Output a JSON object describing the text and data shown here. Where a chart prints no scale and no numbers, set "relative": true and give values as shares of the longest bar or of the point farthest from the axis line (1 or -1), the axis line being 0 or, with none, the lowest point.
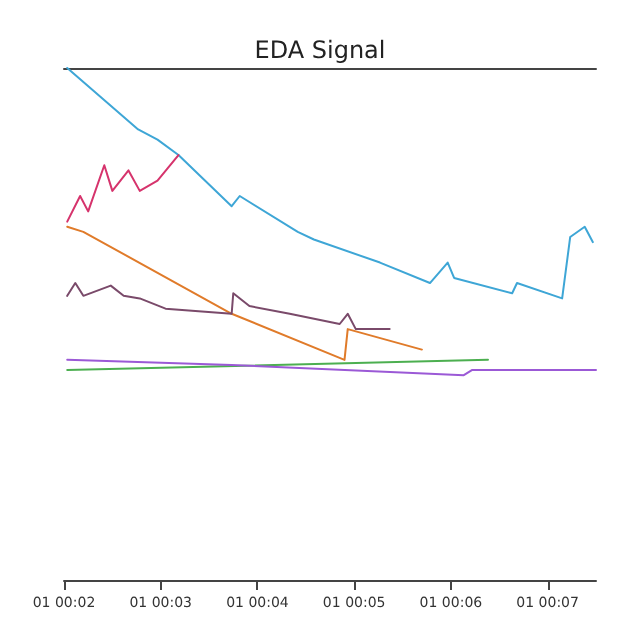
{
  "chart_data": {
    "type": "line",
    "title": "EDA Signal",
    "relative": true,
    "xlim": [
      "--01-01T00:02:00",
      "--01-01T00:07:30"
    ],
    "xticks": [
      {
        "value": "--01-01T00:02",
        "label": "01 00:02"
      },
      {
        "value": "--01-01T00:03",
        "label": "01 00:03"
      },
      {
        "value": "--01-01T00:04",
        "label": "01 00:04"
      },
      {
        "value": "--01-01T00:05",
        "label": "01 00:05"
      },
      {
        "value": "--01-01T00:06",
        "label": "01 00:06"
      },
      {
        "value": "--01-01T00:07",
        "label": "01 00:07"
      }
    ],
    "grid": false,
    "marker": "none",
    "series": [
      {
        "color": "#3ea6d6",
        "x": [
          "--01-01T00:02:02",
          "--01-01T00:02:46",
          "--01-01T00:02:58",
          "--01-01T00:03:11",
          "--01-01T00:03:44",
          "--01-01T00:03:49",
          "--01-01T00:04:25",
          "--01-01T00:04:35",
          "--01-01T00:05:16",
          "--01-01T00:05:47",
          "--01-01T00:05:58",
          "--01-01T00:06:02",
          "--01-01T00:06:38",
          "--01-01T00:06:41",
          "--01-01T00:07:09",
          "--01-01T00:07:14",
          "--01-01T00:07:23",
          "--01-01T00:07:28"
        ],
        "values": [
          1.0,
          0.88,
          0.86,
          0.83,
          0.73,
          0.75,
          0.68,
          0.665,
          0.62,
          0.58,
          0.62,
          0.59,
          0.56,
          0.58,
          0.55,
          0.67,
          0.69,
          0.66
        ]
      },
      {
        "color": "#d6336c",
        "x": [
          "--01-01T00:02:02",
          "--01-01T00:02:10",
          "--01-01T00:02:15",
          "--01-01T00:02:25",
          "--01-01T00:02:30",
          "--01-01T00:02:40",
          "--01-01T00:02:47",
          "--01-01T00:02:58",
          "--01-01T00:03:11"
        ],
        "values": [
          0.7,
          0.75,
          0.72,
          0.81,
          0.76,
          0.8,
          0.76,
          0.78,
          0.83
        ]
      },
      {
        "color": "#e07b2a",
        "x": [
          "--01-01T00:02:02",
          "--01-01T00:02:12",
          "--01-01T00:03:44",
          "--01-01T00:04:54",
          "--01-01T00:04:56",
          "--01-01T00:05:42"
        ],
        "values": [
          0.69,
          0.68,
          0.52,
          0.43,
          0.49,
          0.45
        ]
      },
      {
        "color": "#7a4a6a",
        "x": [
          "--01-01T00:02:02",
          "--01-01T00:02:07",
          "--01-01T00:02:12",
          "--01-01T00:02:29",
          "--01-01T00:02:37",
          "--01-01T00:02:47",
          "--01-01T00:03:03",
          "--01-01T00:03:44",
          "--01-01T00:03:45",
          "--01-01T00:03:55",
          "--01-01T00:04:20",
          "--01-01T00:04:51",
          "--01-01T00:04:56",
          "--01-01T00:05:01",
          "--01-01T00:05:22"
        ],
        "values": [
          0.555,
          0.58,
          0.555,
          0.575,
          0.555,
          0.55,
          0.53,
          0.52,
          0.56,
          0.535,
          0.52,
          0.5,
          0.52,
          0.49,
          0.49
        ]
      },
      {
        "color": "#4caf50",
        "x": [
          "--01-01T00:02:02",
          "--01-01T00:06:23"
        ],
        "values": [
          0.41,
          0.43
        ]
      },
      {
        "color": "#9b59d6",
        "x": [
          "--01-01T00:02:02",
          "--01-01T00:03:44",
          "--01-01T00:06:08",
          "--01-01T00:06:13",
          "--01-01T00:07:30"
        ],
        "values": [
          0.43,
          0.42,
          0.4,
          0.41,
          0.41
        ]
      }
    ]
  }
}
